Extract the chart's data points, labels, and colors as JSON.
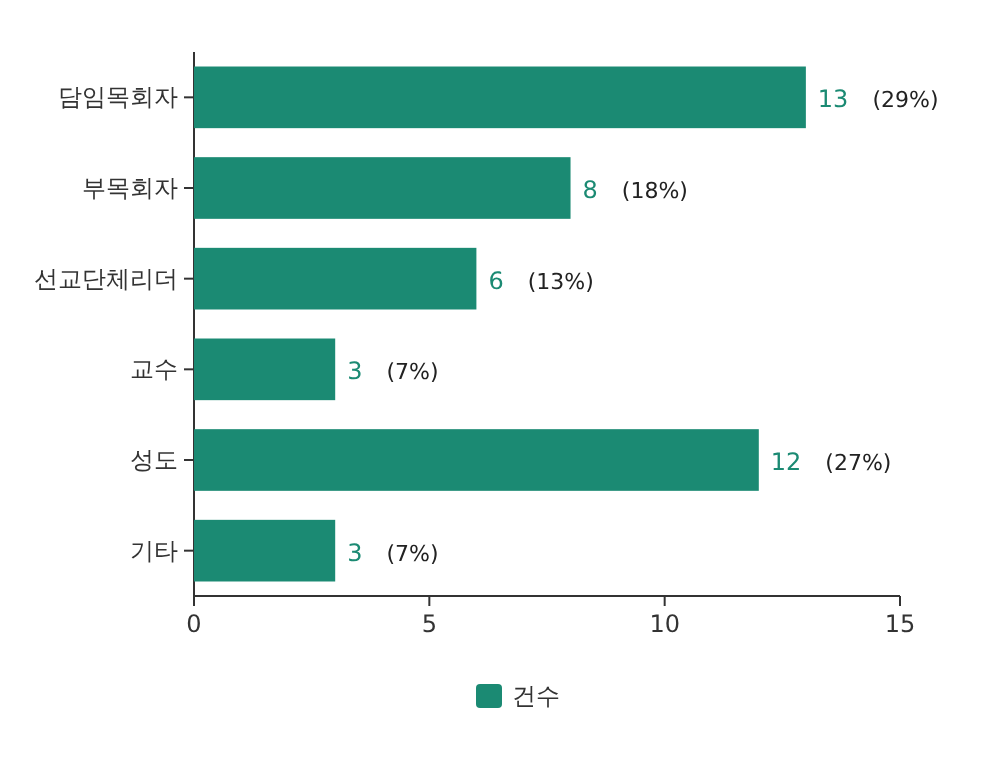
{
  "chart_data": {
    "type": "bar",
    "orientation": "horizontal",
    "categories": [
      "담임목회자",
      "부목회자",
      "선교단체리더",
      "교수",
      "성도",
      "기타"
    ],
    "series": [
      {
        "name": "건수",
        "color": "#1b8a73",
        "values": [
          13,
          8,
          6,
          3,
          12,
          3
        ],
        "value_labels": [
          "13 (29%)",
          "8 (18%)",
          "6 (13%)",
          "3 (7%)",
          "12 (27%)",
          "3 (7%)"
        ]
      }
    ],
    "xlim": [
      0,
      15
    ],
    "xticks": [
      0,
      5,
      10,
      15
    ],
    "grid": false,
    "legend": "bottom"
  }
}
